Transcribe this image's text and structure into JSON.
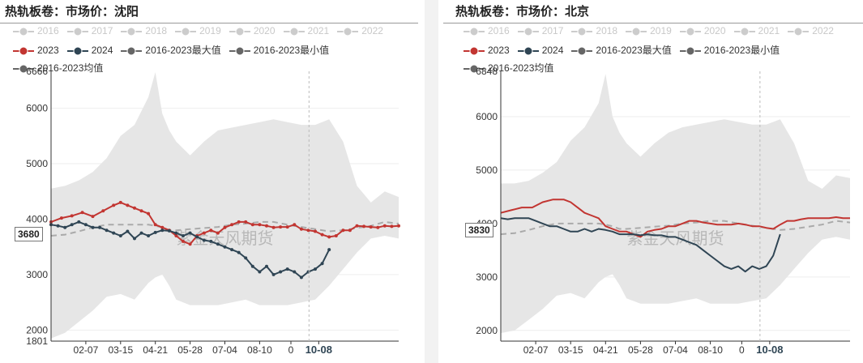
{
  "panels": [
    {
      "title": "热轨板卷：市场价：沈阳",
      "watermark": "紫金天风期货",
      "cursor_value": "3680",
      "legend_row1": [
        "2016",
        "2017",
        "2018",
        "2019",
        "2020",
        "2021",
        "2022"
      ],
      "legend_row2": [
        "2023",
        "2024",
        "2016-2023最大值",
        "2016-2023最小值"
      ],
      "legend_row3": [
        "2016-2023均值"
      ]
    },
    {
      "title": "热轨板卷：市场价：北京",
      "watermark": "紫金天风期货",
      "cursor_value": "3830",
      "legend_row1": [
        "2016",
        "2017",
        "2018",
        "2019",
        "2020",
        "2021",
        "2022"
      ],
      "legend_row2": [
        "2023",
        "2024",
        "2016-2023最大值",
        "2016-2023最小值"
      ],
      "legend_row3": [
        "2016-2023均值"
      ]
    }
  ],
  "colors": {
    "y2023": "#c23531",
    "y2024": "#2f4554",
    "band": "#e6e6e6",
    "avg": "#aaaaaa",
    "legend_off": "#cccccc",
    "legend_stat": "#666666"
  },
  "chart_data": [
    {
      "type": "line",
      "title": "热轨板卷：市场价：沈阳",
      "x_tick_labels": [
        "02-07",
        "03-15",
        "04-21",
        "05-28",
        "07-04",
        "08-10",
        "0",
        "10-08"
      ],
      "x_tick_pos": [
        0.1,
        0.2,
        0.3,
        0.4,
        0.5,
        0.6,
        0.69,
        0.77
      ],
      "highlighted_x_label": "10-08",
      "y_tick_labels": [
        "6666",
        "6000",
        "5000",
        "4000",
        "3000",
        "2000",
        "1801"
      ],
      "ylim": [
        1801,
        6666
      ],
      "band_x": [
        0,
        0.04,
        0.08,
        0.12,
        0.16,
        0.2,
        0.24,
        0.28,
        0.3,
        0.32,
        0.34,
        0.36,
        0.4,
        0.44,
        0.48,
        0.52,
        0.56,
        0.6,
        0.64,
        0.68,
        0.72,
        0.76,
        0.8,
        0.84,
        0.88,
        0.92,
        0.96,
        1.0
      ],
      "max": [
        4550,
        4600,
        4700,
        4850,
        5100,
        5500,
        5700,
        6200,
        6650,
        5900,
        5600,
        5400,
        5150,
        5400,
        5600,
        5650,
        5700,
        5750,
        5800,
        5750,
        5700,
        5700,
        5800,
        5400,
        4600,
        4300,
        4500,
        4400
      ],
      "min": [
        1850,
        1950,
        2150,
        2350,
        2600,
        2650,
        2550,
        2850,
        2950,
        3000,
        2800,
        2550,
        2450,
        2450,
        2450,
        2500,
        2550,
        2450,
        2450,
        2450,
        2500,
        2550,
        2800,
        3100,
        3400,
        3650,
        3700,
        3650
      ],
      "avg": [
        3700,
        3720,
        3780,
        3850,
        3900,
        3900,
        3900,
        3900,
        3880,
        3850,
        3800,
        3800,
        3820,
        3840,
        3860,
        3900,
        3920,
        3950,
        3950,
        3900,
        3860,
        3820,
        3780,
        3800,
        3840,
        3880,
        3950,
        3920
      ],
      "series": [
        {
          "name": "2023",
          "x": [
            0,
            0.03,
            0.06,
            0.09,
            0.12,
            0.15,
            0.18,
            0.2,
            0.22,
            0.24,
            0.26,
            0.28,
            0.3,
            0.32,
            0.34,
            0.36,
            0.38,
            0.4,
            0.42,
            0.44,
            0.46,
            0.48,
            0.5,
            0.52,
            0.54,
            0.56,
            0.58,
            0.6,
            0.62,
            0.64,
            0.66,
            0.68,
            0.7,
            0.72,
            0.74,
            0.76,
            0.78,
            0.8,
            0.82,
            0.84,
            0.86,
            0.88,
            0.9,
            0.92,
            0.94,
            0.96,
            0.98,
            1.0
          ],
          "values": [
            3950,
            4020,
            4060,
            4120,
            4050,
            4150,
            4250,
            4300,
            4250,
            4200,
            4150,
            4100,
            3900,
            3850,
            3800,
            3700,
            3600,
            3550,
            3700,
            3750,
            3800,
            3750,
            3850,
            3900,
            3950,
            3950,
            3900,
            3900,
            3880,
            3850,
            3860,
            3860,
            3900,
            3820,
            3800,
            3780,
            3720,
            3680,
            3700,
            3800,
            3800,
            3880,
            3870,
            3860,
            3850,
            3880,
            3870,
            3880
          ]
        },
        {
          "name": "2024",
          "x": [
            0,
            0.02,
            0.04,
            0.06,
            0.08,
            0.1,
            0.12,
            0.14,
            0.16,
            0.18,
            0.2,
            0.22,
            0.24,
            0.26,
            0.28,
            0.3,
            0.32,
            0.34,
            0.36,
            0.38,
            0.4,
            0.42,
            0.44,
            0.46,
            0.48,
            0.5,
            0.52,
            0.54,
            0.56,
            0.58,
            0.6,
            0.62,
            0.64,
            0.66,
            0.68,
            0.7,
            0.72,
            0.74,
            0.76,
            0.78,
            0.8
          ],
          "values": [
            3900,
            3880,
            3850,
            3900,
            3950,
            3900,
            3850,
            3850,
            3800,
            3750,
            3700,
            3780,
            3650,
            3750,
            3700,
            3760,
            3800,
            3790,
            3750,
            3700,
            3750,
            3680,
            3620,
            3600,
            3550,
            3500,
            3450,
            3400,
            3300,
            3150,
            3050,
            3150,
            3000,
            3050,
            3100,
            3050,
            2950,
            3050,
            3100,
            3200,
            3450
          ]
        }
      ]
    },
    {
      "type": "line",
      "title": "热轨板卷：市场价：北京",
      "x_tick_labels": [
        "02-07",
        "03-15",
        "04-21",
        "05-28",
        "07-04",
        "08-10",
        "0",
        "10-08"
      ],
      "x_tick_pos": [
        0.1,
        0.2,
        0.3,
        0.4,
        0.5,
        0.6,
        0.69,
        0.77
      ],
      "highlighted_x_label": "10-08",
      "y_tick_labels": [
        "6848",
        "6000",
        "5000",
        "4000",
        "3000",
        "2000"
      ],
      "ylim": [
        1800,
        6848
      ],
      "band_x": [
        0,
        0.04,
        0.08,
        0.12,
        0.16,
        0.2,
        0.24,
        0.28,
        0.3,
        0.32,
        0.34,
        0.36,
        0.4,
        0.44,
        0.48,
        0.52,
        0.56,
        0.6,
        0.64,
        0.68,
        0.72,
        0.76,
        0.8,
        0.84,
        0.88,
        0.92,
        0.96,
        1.0
      ],
      "max": [
        4750,
        4750,
        4800,
        4950,
        5150,
        5550,
        5800,
        6250,
        6800,
        6000,
        5700,
        5500,
        5250,
        5500,
        5700,
        5800,
        5850,
        5900,
        5950,
        5900,
        5850,
        5850,
        5950,
        5500,
        4800,
        4650,
        4900,
        4850
      ],
      "min": [
        1950,
        2000,
        2200,
        2400,
        2650,
        2700,
        2600,
        2900,
        3000,
        3050,
        2850,
        2600,
        2500,
        2500,
        2500,
        2550,
        2600,
        2500,
        2500,
        2500,
        2550,
        2600,
        2850,
        3150,
        3450,
        3700,
        3750,
        3700
      ],
      "avg": [
        3800,
        3820,
        3880,
        3950,
        4000,
        4000,
        4000,
        4000,
        3980,
        3950,
        3900,
        3900,
        3920,
        3940,
        3960,
        4000,
        4020,
        4050,
        4050,
        4000,
        3960,
        3920,
        3880,
        3900,
        3940,
        3980,
        4050,
        4020
      ],
      "series": [
        {
          "name": "2023",
          "x": [
            0,
            0.03,
            0.06,
            0.09,
            0.12,
            0.15,
            0.18,
            0.2,
            0.22,
            0.24,
            0.26,
            0.28,
            0.3,
            0.32,
            0.34,
            0.36,
            0.38,
            0.4,
            0.42,
            0.44,
            0.46,
            0.48,
            0.5,
            0.52,
            0.54,
            0.56,
            0.58,
            0.6,
            0.62,
            0.64,
            0.66,
            0.68,
            0.7,
            0.72,
            0.74,
            0.76,
            0.78,
            0.8,
            0.82,
            0.84,
            0.86,
            0.88,
            0.9,
            0.92,
            0.94,
            0.96,
            0.98,
            1.0
          ],
          "values": [
            4200,
            4250,
            4300,
            4300,
            4400,
            4450,
            4450,
            4400,
            4300,
            4200,
            4150,
            4100,
            3950,
            3900,
            3850,
            3850,
            3800,
            3750,
            3850,
            3880,
            3900,
            3950,
            3950,
            4000,
            4050,
            4050,
            4020,
            4000,
            3980,
            3980,
            3980,
            4000,
            3980,
            3950,
            3950,
            3920,
            3900,
            3980,
            4050,
            4050,
            4080,
            4100,
            4100,
            4100,
            4100,
            4120,
            4100,
            4100
          ]
        },
        {
          "name": "2024",
          "x": [
            0,
            0.02,
            0.04,
            0.06,
            0.08,
            0.1,
            0.12,
            0.14,
            0.16,
            0.18,
            0.2,
            0.22,
            0.24,
            0.26,
            0.28,
            0.3,
            0.32,
            0.34,
            0.36,
            0.38,
            0.4,
            0.42,
            0.44,
            0.46,
            0.48,
            0.5,
            0.52,
            0.54,
            0.56,
            0.58,
            0.6,
            0.62,
            0.64,
            0.66,
            0.68,
            0.7,
            0.72,
            0.74,
            0.76,
            0.78,
            0.8
          ],
          "values": [
            4100,
            4080,
            4100,
            4100,
            4100,
            4050,
            4000,
            3950,
            3950,
            3900,
            3850,
            3850,
            3900,
            3850,
            3900,
            3880,
            3850,
            3800,
            3800,
            3800,
            3780,
            3800,
            3780,
            3780,
            3750,
            3750,
            3700,
            3650,
            3600,
            3500,
            3400,
            3300,
            3200,
            3150,
            3200,
            3100,
            3200,
            3150,
            3200,
            3400,
            3800
          ]
        }
      ]
    }
  ]
}
